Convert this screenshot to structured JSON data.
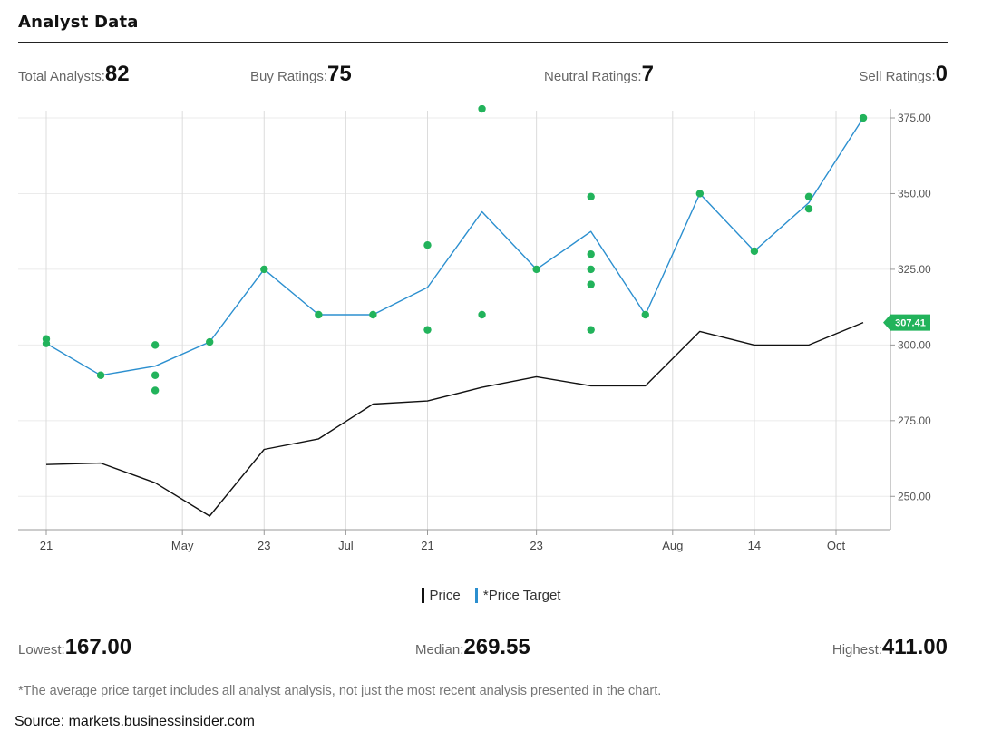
{
  "header": {
    "title": "Analyst Data"
  },
  "stats": {
    "total_label": "Total Analysts: ",
    "total_value": "82",
    "buy_label": "Buy Ratings: ",
    "buy_value": "75",
    "neutral_label": "Neutral Ratings: ",
    "neutral_value": "7",
    "sell_label": "Sell Ratings: ",
    "sell_value": "0"
  },
  "legend": {
    "price": "Price",
    "price_target": "*Price Target"
  },
  "summary": {
    "lowest_label": "Lowest: ",
    "lowest_value": "167.00",
    "median_label": "Median: ",
    "median_value": "269.55",
    "highest_label": "Highest: ",
    "highest_value": "411.00"
  },
  "footnote": "*The average price target includes all analyst analysis, not just the most recent analysis presented in the chart.",
  "source": "Source: markets.businessinsider.com",
  "chart_data": {
    "type": "line",
    "x_count": 16,
    "x_ticks": [
      {
        "i": 0,
        "label": "21"
      },
      {
        "i": 2.5,
        "label": "May"
      },
      {
        "i": 4,
        "label": "23"
      },
      {
        "i": 5.5,
        "label": "Jul"
      },
      {
        "i": 7,
        "label": "21"
      },
      {
        "i": 9,
        "label": "23"
      },
      {
        "i": 11.5,
        "label": "Aug"
      },
      {
        "i": 13,
        "label": "14"
      },
      {
        "i": 14.5,
        "label": "Oct"
      }
    ],
    "y_ticks": [
      250,
      275,
      300,
      325,
      350,
      375
    ],
    "y_tick_labels": [
      "250.00",
      "275.00",
      "300.00",
      "325.00",
      "350.00",
      "375.00"
    ],
    "ylim": [
      239,
      378
    ],
    "series": [
      {
        "name": "Price",
        "color": "#111111",
        "points": [
          [
            0,
            260.5
          ],
          [
            1,
            261
          ],
          [
            2,
            254.5
          ],
          [
            3,
            243.5
          ],
          [
            4,
            265.5
          ],
          [
            5,
            269
          ],
          [
            6,
            280.5
          ],
          [
            7,
            281.5
          ],
          [
            8,
            286
          ],
          [
            9,
            289.5
          ],
          [
            10,
            286.5
          ],
          [
            11,
            286.5
          ],
          [
            12,
            304.5
          ],
          [
            13,
            300
          ],
          [
            14,
            300
          ],
          [
            15,
            307.41
          ]
        ]
      },
      {
        "name": "*Price Target",
        "color": "#2b8fcf",
        "points": [
          [
            0,
            300.5
          ],
          [
            1,
            290
          ],
          [
            2,
            293
          ],
          [
            3,
            301
          ],
          [
            4,
            325
          ],
          [
            5,
            310
          ],
          [
            6,
            310
          ],
          [
            7,
            319
          ],
          [
            8,
            344
          ],
          [
            9,
            325
          ],
          [
            10,
            337.5
          ],
          [
            11,
            310
          ],
          [
            12,
            350
          ],
          [
            13,
            331
          ],
          [
            14,
            347
          ],
          [
            15,
            375
          ]
        ]
      }
    ],
    "ratings": [
      [
        0,
        302
      ],
      [
        0,
        300.5
      ],
      [
        1,
        290
      ],
      [
        2,
        300
      ],
      [
        2,
        290
      ],
      [
        2,
        285
      ],
      [
        3,
        301
      ],
      [
        4,
        325
      ],
      [
        5,
        310
      ],
      [
        6,
        310
      ],
      [
        7,
        333
      ],
      [
        7,
        305
      ],
      [
        8,
        378
      ],
      [
        8,
        310
      ],
      [
        9,
        325
      ],
      [
        10,
        349
      ],
      [
        10,
        330
      ],
      [
        10,
        325
      ],
      [
        10,
        320
      ],
      [
        10,
        305
      ],
      [
        11,
        310
      ],
      [
        12,
        350
      ],
      [
        13,
        331
      ],
      [
        14,
        349
      ],
      [
        14,
        345
      ],
      [
        15,
        375
      ]
    ],
    "rating_color": "#22b35b",
    "last_price_label": "307.41",
    "last_price_value": 307.41,
    "last_price_color": "#22b35b"
  }
}
